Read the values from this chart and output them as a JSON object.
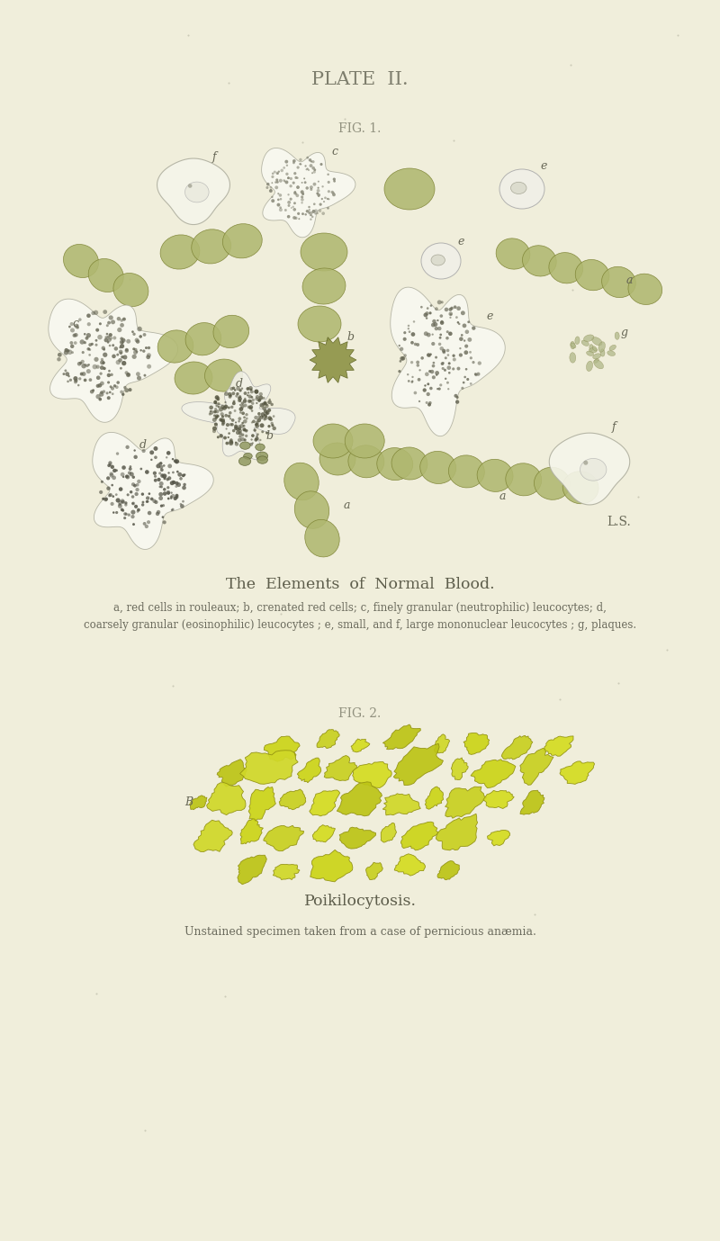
{
  "background_color": "#f0eedb",
  "plate_title": "PLATE  II.",
  "fig1_label": "FIG. 1.",
  "fig2_label": "FIG. 2.",
  "fig1_caption_title": "The  Elements  of  Normal  Blood.",
  "fig1_caption": "a, red cells in rouleaux; b, crenated red cells; c, finely granular (neutrophilic) leucocytes; d,\ncoarsely granular (eosinophilic) leucocytes ; e, small, and f, large mononuclear leucocytes ; g, plaques.",
  "fig2_caption_title": "Poikilocytosis.",
  "fig2_caption": "Unstained specimen taken from a case of pernicious anæmia.",
  "ls_label": "L.S.",
  "olive_green": "#8a9148",
  "olive_green_light": "#a8ae62",
  "olive_green_dark": "#6b7030",
  "cell_fill": "#b0b870",
  "cell_edge": "#7a8030",
  "gray_outline": "#b8b8a8",
  "gray_dark": "#888878",
  "yellow_bright": "#d0d818",
  "yellow_mid": "#c4cc22",
  "yellow_edge": "#909010",
  "text_dark": "#4a4a38",
  "text_mid": "#666655",
  "text_light": "#888877"
}
